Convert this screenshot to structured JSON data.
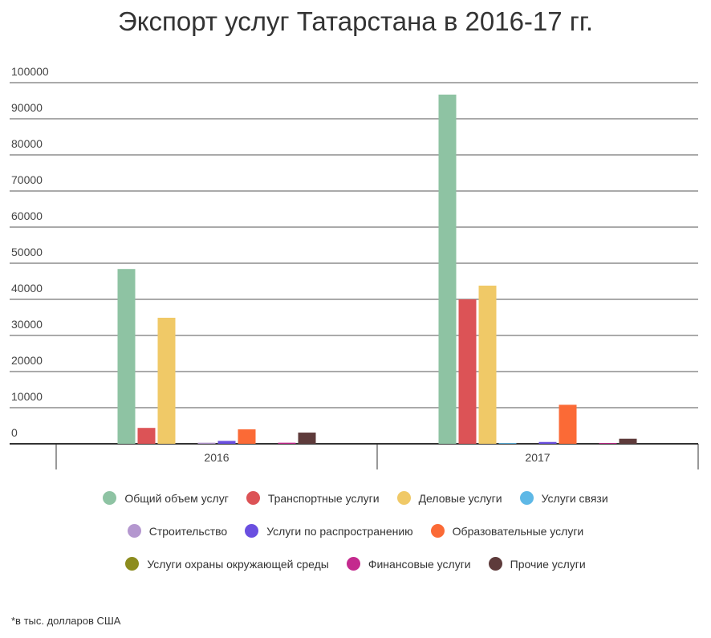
{
  "chart_data": {
    "type": "bar",
    "title": "Экспорт услуг Татарстана в 2016-17 гг.",
    "categories": [
      "2016",
      "2017"
    ],
    "ylim": [
      0,
      100000
    ],
    "yticks": [
      "0",
      "10000",
      "20000",
      "30000",
      "40000",
      "50000",
      "60000",
      "70000",
      "80000",
      "90000",
      "100000"
    ],
    "grid": true,
    "legend_position": "bottom",
    "series": [
      {
        "name": "Общий объем услуг",
        "color": "#8ec3a3",
        "values": [
          48400,
          96700
        ]
      },
      {
        "name": "Транспортные услуги",
        "color": "#dc5356",
        "values": [
          4400,
          40000
        ]
      },
      {
        "name": "Деловые услуги",
        "color": "#f0c967",
        "values": [
          34900,
          43800
        ]
      },
      {
        "name": "Услуги связи",
        "color": "#5eb8e6",
        "values": [
          0,
          200
        ]
      },
      {
        "name": "Строительство",
        "color": "#b497cf",
        "values": [
          300,
          0
        ]
      },
      {
        "name": "Услуги по распространению",
        "color": "#6a4fe0",
        "values": [
          800,
          500
        ]
      },
      {
        "name": "Образовательные услуги",
        "color": "#fb6a36",
        "values": [
          4000,
          10800
        ]
      },
      {
        "name": "Услуги охраны окружающей среды",
        "color": "#8c8c1e",
        "values": [
          0,
          0
        ]
      },
      {
        "name": "Финансовые услуги",
        "color": "#c42a8e",
        "values": [
          300,
          200
        ]
      },
      {
        "name": "Прочие услуги",
        "color": "#5e3b3b",
        "values": [
          3100,
          1400
        ]
      }
    ],
    "note": "*в тыс. долларов США"
  }
}
